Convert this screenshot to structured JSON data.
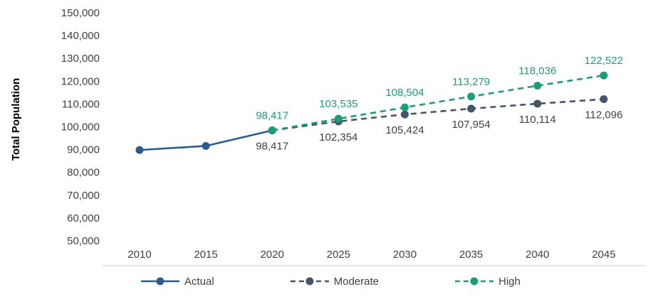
{
  "chart_data": {
    "type": "line",
    "title": "",
    "xlabel": "",
    "ylabel": "Total Population",
    "x_categories": [
      2010,
      2015,
      2020,
      2025,
      2030,
      2035,
      2040,
      2045
    ],
    "ylim": [
      50000,
      150000
    ],
    "y_tick_step": 10000,
    "y_tick_labels": [
      "150,000",
      "140,000",
      "130,000",
      "120,000",
      "110,000",
      "100,000",
      "90,000",
      "80,000",
      "70,000",
      "60,000",
      "50,000"
    ],
    "grid": false,
    "legend_position": "bottom",
    "series": [
      {
        "name": "Actual",
        "x": [
          2010,
          2015,
          2020
        ],
        "values": [
          89800,
          91600,
          98417
        ],
        "color": "#2e5b8c",
        "dash": false,
        "labels": [
          null,
          null,
          null
        ],
        "label_position": "below",
        "label_color": "#3f3f3f"
      },
      {
        "name": "Moderate",
        "x": [
          2020,
          2025,
          2030,
          2035,
          2040,
          2045
        ],
        "values": [
          98417,
          102354,
          105424,
          107954,
          110114,
          112096
        ],
        "color": "#44546a",
        "dash": true,
        "labels": [
          "98,417",
          "102,354",
          "105,424",
          "107,954",
          "110,114",
          "112,096"
        ],
        "label_position": "below",
        "label_color": "#3f3f3f"
      },
      {
        "name": "High",
        "x": [
          2020,
          2025,
          2030,
          2035,
          2040,
          2045
        ],
        "values": [
          98417,
          103535,
          108504,
          113279,
          118036,
          122522
        ],
        "color": "#1e9c77",
        "dash": true,
        "labels": [
          "98,417",
          "103,535",
          "108,504",
          "113,279",
          "118,036",
          "122,522"
        ],
        "label_position": "above",
        "label_color": "#1e9c77"
      }
    ],
    "separator_color": "#d9d9d9"
  }
}
